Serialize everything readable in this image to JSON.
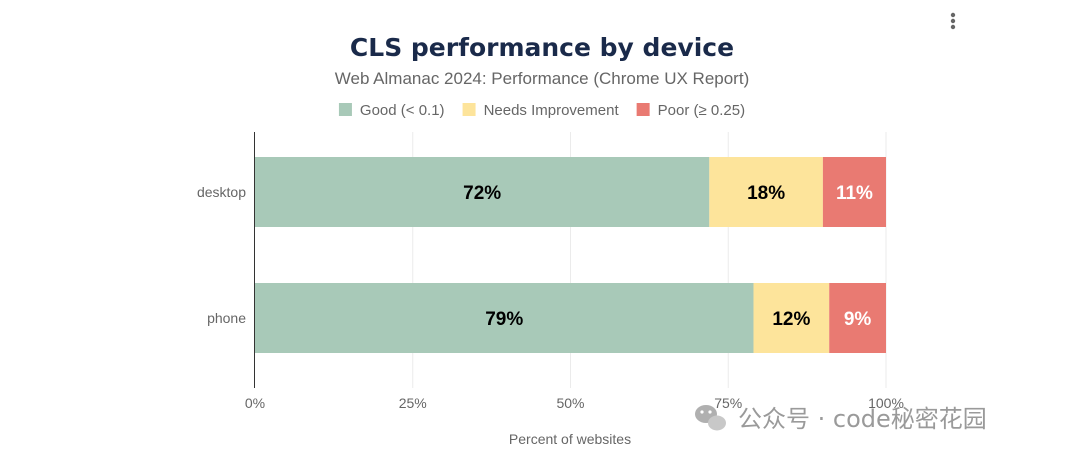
{
  "chart_data": {
    "type": "bar",
    "orientation": "horizontal",
    "stacked": true,
    "title": "CLS performance by device",
    "subtitle": "Web Almanac 2024: Performance (Chrome UX Report)",
    "categories": [
      "desktop",
      "phone"
    ],
    "series": [
      {
        "name": "Good (< 0.1)",
        "color": "#a8c9b8",
        "values": [
          72,
          79
        ],
        "labels": [
          "72%",
          "79%"
        ],
        "label_color": "#000000"
      },
      {
        "name": "Needs Improvement",
        "color": "#fde49b",
        "values": [
          18,
          12
        ],
        "labels": [
          "18%",
          "12%"
        ],
        "label_color": "#000000"
      },
      {
        "name": "Poor (≥ 0.25)",
        "color": "#e97a72",
        "values": [
          11,
          9
        ],
        "labels": [
          "11%",
          "9%"
        ],
        "label_color": "#ffffff"
      }
    ],
    "xlabel": "Percent of websites",
    "ylabel": "",
    "xlim": [
      0,
      100
    ],
    "xticks": [
      0,
      25,
      50,
      75,
      100
    ],
    "xtick_labels": [
      "0%",
      "25%",
      "50%",
      "75%",
      "100%"
    ],
    "grid": true,
    "legend_position": "top-center"
  },
  "menu": {
    "icon": "more-vertical-icon"
  },
  "watermark": {
    "text": "公众号 · code秘密花园",
    "icon": "wechat-icon"
  }
}
